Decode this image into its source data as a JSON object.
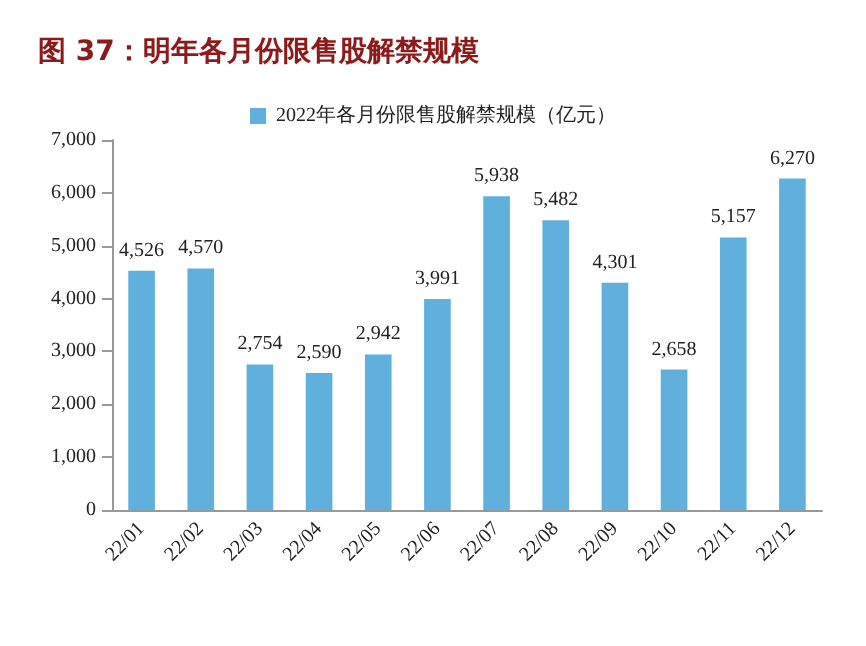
{
  "chart_data": {
    "type": "bar",
    "title": "图 37：明年各月份限售股解禁规模",
    "categories": [
      "22/01",
      "22/02",
      "22/03",
      "22/04",
      "22/05",
      "22/06",
      "22/07",
      "22/08",
      "22/09",
      "22/10",
      "22/11",
      "22/12"
    ],
    "series": [
      {
        "name": "2022年各月份限售股解禁规模（亿元）",
        "color": "#5fb0dc",
        "values": [
          4526,
          4570,
          2754,
          2590,
          2942,
          3991,
          5938,
          5482,
          4301,
          2658,
          5157,
          6270
        ],
        "value_labels": [
          "4,526",
          "4,570",
          "2,754",
          "2,590",
          "2,942",
          "3,991",
          "5,938",
          "5,482",
          "4,301",
          "2,658",
          "5,157",
          "6,270"
        ]
      }
    ],
    "ylim": [
      0,
      7000
    ],
    "yticks": [
      0,
      {
        "value": 1000,
        "label": "1,000"
      },
      {
        "value": 2000,
        "label": "2,000"
      },
      {
        "value": 3000,
        "label": "3,000"
      },
      {
        "value": 4000,
        "label": "4,000"
      },
      {
        "value": 5000,
        "label": "5,000"
      },
      {
        "value": 6000,
        "label": "6,000"
      },
      {
        "value": 7000,
        "label": "7,000"
      }
    ],
    "grid": false,
    "legend": "top"
  }
}
